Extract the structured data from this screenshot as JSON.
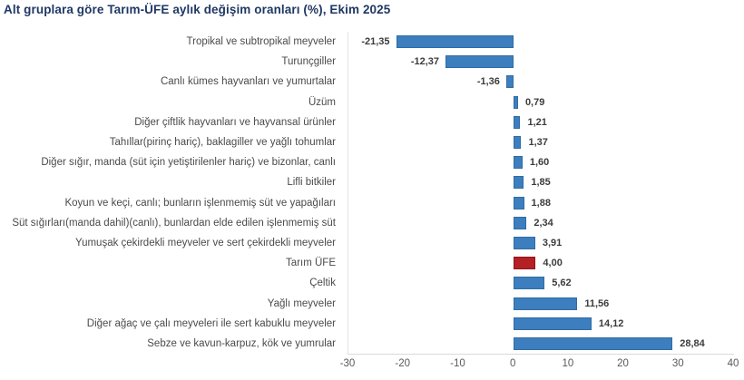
{
  "title": "Alt gruplara göre Tarım-ÜFE aylık değişim oranları (%), Ekim 2025",
  "title_color": "#1f3864",
  "chart_data": {
    "type": "bar",
    "orientation": "horizontal",
    "title": "Alt gruplara göre Tarım-ÜFE aylık değişim oranları (%), Ekim 2025",
    "categories": [
      "Tropikal ve subtropikal meyveler",
      "Turunçgiller",
      "Canlı kümes hayvanları ve yumurtalar",
      "Üzüm",
      "Diğer çiftlik hayvanları ve hayvansal ürünler",
      "Tahıllar(pirinç hariç), baklagiller ve yağlı tohumlar",
      "Diğer sığır, manda (süt için yetiştirilenler hariç) ve bizonlar, canlı",
      "Lifli bitkiler",
      "Koyun ve keçi, canlı; bunların işlenmemiş süt ve yapağıları",
      "Süt sığırları(manda dahil)(canlı), bunlardan elde edilen işlenmemiş süt",
      "Yumuşak çekirdekli meyveler ve sert çekirdekli meyveler",
      "Tarım ÜFE",
      "Çeltik",
      "Yağlı meyveler",
      "Diğer ağaç ve çalı meyveleri ile sert kabuklu meyveler",
      "Sebze ve kavun-karpuz, kök ve yumrular"
    ],
    "values": [
      -21.35,
      -12.37,
      -1.36,
      0.79,
      1.21,
      1.37,
      1.6,
      1.85,
      1.88,
      2.34,
      3.91,
      4.0,
      5.62,
      11.56,
      14.12,
      28.84
    ],
    "value_labels": [
      "-21,35",
      "-12,37",
      "-1,36",
      "0,79",
      "1,21",
      "1,37",
      "1,60",
      "1,85",
      "1,88",
      "2,34",
      "3,91",
      "4,00",
      "5,62",
      "11,56",
      "14,12",
      "28,84"
    ],
    "highlight_category": "Tarım ÜFE",
    "bar_color": "#3d7ebf",
    "bar_border_color": "#2e6da4",
    "highlight_color": "#b42025",
    "highlight_border_color": "#8e1418",
    "xlabel": "",
    "ylabel": "",
    "xlim": [
      -30,
      40
    ],
    "x_ticks": [
      "-30",
      "-20",
      "-10",
      "0",
      "10",
      "20",
      "30",
      "40"
    ],
    "legend": "none",
    "grid": "off"
  }
}
